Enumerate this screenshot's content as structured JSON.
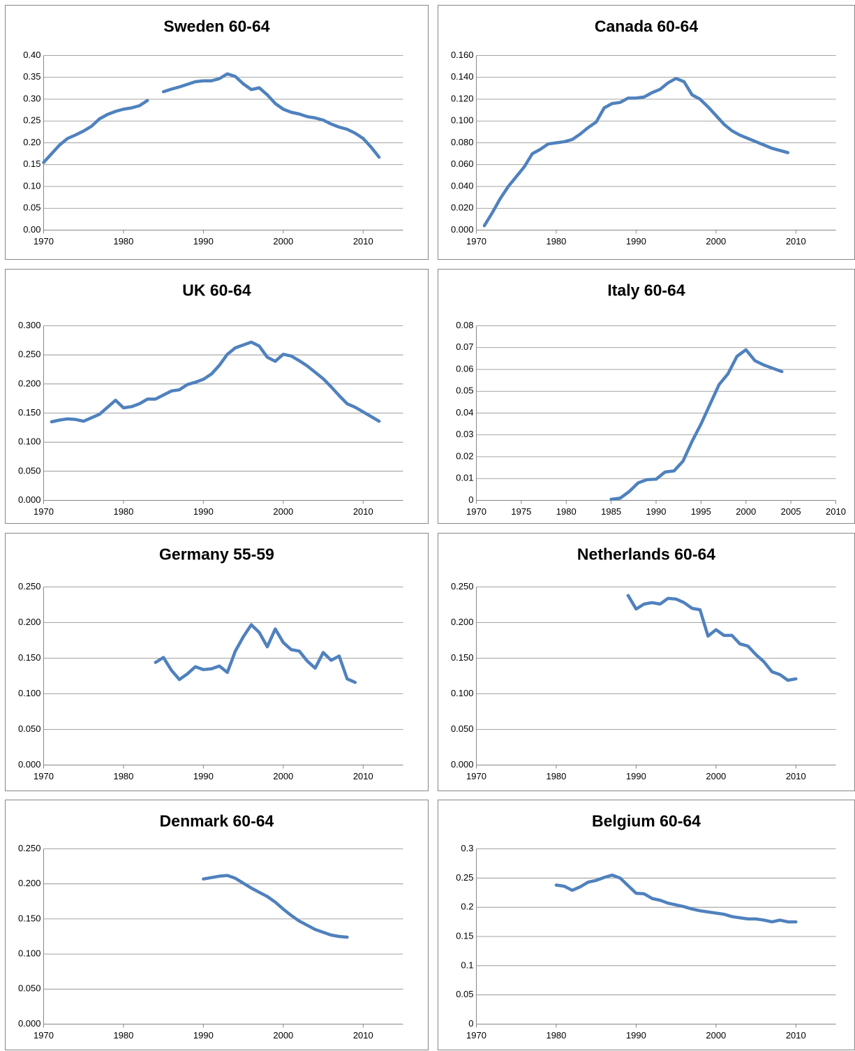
{
  "chart_data": [
    {
      "type": "line",
      "title": "Sweden 60-64",
      "color": "#4f81bd",
      "grid": true,
      "x": [
        1970,
        1971,
        1972,
        1973,
        1974,
        1975,
        1976,
        1977,
        1978,
        1979,
        1980,
        1981,
        1982,
        1983,
        1984,
        1985,
        1986,
        1987,
        1988,
        1989,
        1990,
        1991,
        1992,
        1993,
        1994,
        1995,
        1996,
        1997,
        1998,
        1999,
        2000,
        2001,
        2002,
        2003,
        2004,
        2005,
        2006,
        2007,
        2008,
        2009,
        2010,
        2011,
        2012
      ],
      "values": [
        0.155,
        0.175,
        0.195,
        0.21,
        0.218,
        0.227,
        0.238,
        0.255,
        0.265,
        0.272,
        0.277,
        0.28,
        0.285,
        0.297,
        null,
        0.317,
        0.323,
        0.328,
        0.334,
        0.34,
        0.342,
        0.342,
        0.347,
        0.358,
        0.352,
        0.335,
        0.322,
        0.326,
        0.31,
        0.29,
        0.277,
        0.27,
        0.266,
        0.26,
        0.257,
        0.252,
        0.243,
        0.236,
        0.231,
        0.222,
        0.21,
        0.19,
        0.167
      ],
      "xlim": [
        1970,
        2015
      ],
      "xticks": [
        1970,
        1980,
        1990,
        2000,
        2010
      ],
      "ylim": [
        0,
        0.4
      ],
      "yticks": [
        {
          "value": 0,
          "label": "0.00"
        },
        0.05,
        {
          "value": 0.1,
          "label": "0.10"
        },
        0.15,
        {
          "value": 0.2,
          "label": "0.20"
        },
        0.25,
        {
          "value": 0.3,
          "label": "0.30"
        },
        0.35,
        {
          "value": 0.4,
          "label": "0.40"
        }
      ]
    },
    {
      "type": "line",
      "title": "Canada 60-64",
      "color": "#4f81bd",
      "grid": true,
      "x": [
        1971,
        1972,
        1973,
        1974,
        1975,
        1976,
        1977,
        1978,
        1979,
        1980,
        1981,
        1982,
        1983,
        1984,
        1985,
        1986,
        1987,
        1988,
        1989,
        1990,
        1991,
        1992,
        1993,
        1994,
        1995,
        1996,
        1997,
        1998,
        1999,
        2000,
        2001,
        2002,
        2003,
        2004,
        2005,
        2006,
        2007,
        2008,
        2009
      ],
      "values": [
        0.004,
        0.016,
        0.029,
        0.04,
        0.049,
        0.058,
        0.07,
        0.074,
        0.079,
        0.08,
        0.081,
        0.083,
        0.088,
        0.094,
        0.099,
        0.112,
        0.116,
        0.117,
        0.121,
        0.121,
        0.122,
        0.126,
        0.129,
        0.135,
        0.139,
        0.136,
        0.124,
        0.12,
        0.113,
        0.105,
        0.097,
        0.091,
        0.087,
        0.084,
        0.081,
        0.078,
        0.075,
        0.073,
        0.071
      ],
      "xlim": [
        1970,
        2015
      ],
      "xticks": [
        1970,
        1980,
        1990,
        2000,
        2010
      ],
      "ylim": [
        0,
        0.16
      ],
      "yticks": [
        {
          "value": 0,
          "label": "0.000"
        },
        {
          "value": 0.02,
          "label": "0.020"
        },
        {
          "value": 0.04,
          "label": "0.040"
        },
        {
          "value": 0.06,
          "label": "0.060"
        },
        {
          "value": 0.08,
          "label": "0.080"
        },
        {
          "value": 0.1,
          "label": "0.100"
        },
        {
          "value": 0.12,
          "label": "0.120"
        },
        {
          "value": 0.14,
          "label": "0.140"
        },
        {
          "value": 0.16,
          "label": "0.160"
        }
      ]
    },
    {
      "type": "line",
      "title": "UK 60-64",
      "color": "#4f81bd",
      "grid": true,
      "x": [
        1971,
        1972,
        1973,
        1974,
        1975,
        1976,
        1977,
        1978,
        1979,
        1980,
        1981,
        1982,
        1983,
        1984,
        1985,
        1986,
        1987,
        1988,
        1989,
        1990,
        1991,
        1992,
        1993,
        1994,
        1995,
        1996,
        1997,
        1998,
        1999,
        2000,
        2001,
        2002,
        2003,
        2004,
        2005,
        2006,
        2007,
        2008,
        2009,
        2010,
        2011,
        2012
      ],
      "values": [
        0.135,
        0.138,
        0.14,
        0.139,
        0.136,
        0.142,
        0.148,
        0.16,
        0.172,
        0.159,
        0.161,
        0.166,
        0.174,
        0.174,
        0.181,
        0.188,
        0.19,
        0.199,
        0.203,
        0.208,
        0.217,
        0.232,
        0.251,
        0.262,
        0.267,
        0.272,
        0.265,
        0.246,
        0.239,
        0.251,
        0.248,
        0.24,
        0.231,
        0.22,
        0.209,
        0.195,
        0.18,
        0.166,
        0.16,
        0.152,
        0.144,
        0.136
      ],
      "xlim": [
        1970,
        2015
      ],
      "xticks": [
        1970,
        1980,
        1990,
        2000,
        2010
      ],
      "ylim": [
        0,
        0.3
      ],
      "yticks": [
        {
          "value": 0,
          "label": "0.000"
        },
        {
          "value": 0.05,
          "label": "0.050"
        },
        {
          "value": 0.1,
          "label": "0.100"
        },
        {
          "value": 0.15,
          "label": "0.150"
        },
        {
          "value": 0.2,
          "label": "0.200"
        },
        {
          "value": 0.25,
          "label": "0.250"
        },
        {
          "value": 0.3,
          "label": "0.300"
        }
      ]
    },
    {
      "type": "line",
      "title": "Italy 60-64",
      "color": "#4f81bd",
      "grid": true,
      "x": [
        1985,
        1986,
        1987,
        1988,
        1989,
        1990,
        1991,
        1992,
        1993,
        1994,
        1995,
        1996,
        1997,
        1998,
        1999,
        2000,
        2001,
        2002,
        2003,
        2004
      ],
      "values": [
        0.0005,
        0.001,
        0.004,
        0.008,
        0.0095,
        0.0097,
        0.013,
        0.0135,
        0.018,
        0.027,
        0.035,
        0.044,
        0.053,
        0.058,
        0.066,
        0.069,
        0.064,
        0.062,
        0.0605,
        0.059
      ],
      "xlim": [
        1970,
        2010
      ],
      "xticks": [
        1970,
        1975,
        1980,
        1985,
        1990,
        1995,
        2000,
        2005,
        2010
      ],
      "ylim": [
        0,
        0.08
      ],
      "yticks": [
        0,
        0.01,
        0.02,
        0.03,
        0.04,
        0.05,
        0.06,
        0.07,
        0.08
      ]
    },
    {
      "type": "line",
      "title": "Germany 55-59",
      "color": "#4f81bd",
      "grid": true,
      "x": [
        1984,
        1985,
        1986,
        1987,
        1988,
        1989,
        1990,
        1991,
        1992,
        1993,
        1994,
        1995,
        1996,
        1997,
        1998,
        1999,
        2000,
        2001,
        2002,
        2003,
        2004,
        2005,
        2006,
        2007,
        2008,
        2009
      ],
      "values": [
        0.144,
        0.151,
        0.133,
        0.12,
        0.128,
        0.138,
        0.134,
        0.135,
        0.139,
        0.13,
        0.16,
        0.18,
        0.197,
        0.186,
        0.166,
        0.191,
        0.172,
        0.162,
        0.16,
        0.146,
        0.136,
        0.158,
        0.147,
        0.153,
        0.121,
        0.116
      ],
      "xlim": [
        1970,
        2015
      ],
      "xticks": [
        1970,
        1980,
        1990,
        2000,
        2010
      ],
      "ylim": [
        0,
        0.25
      ],
      "yticks": [
        {
          "value": 0,
          "label": "0.000"
        },
        {
          "value": 0.05,
          "label": "0.050"
        },
        {
          "value": 0.1,
          "label": "0.100"
        },
        {
          "value": 0.15,
          "label": "0.150"
        },
        {
          "value": 0.2,
          "label": "0.200"
        },
        {
          "value": 0.25,
          "label": "0.250"
        }
      ]
    },
    {
      "type": "line",
      "title": "Netherlands 60-64",
      "color": "#4f81bd",
      "grid": true,
      "x": [
        1989,
        1990,
        1991,
        1992,
        1993,
        1994,
        1995,
        1996,
        1997,
        1998,
        1999,
        2000,
        2001,
        2002,
        2003,
        2004,
        2005,
        2006,
        2007,
        2008,
        2009,
        2010
      ],
      "values": [
        0.238,
        0.219,
        0.226,
        0.228,
        0.226,
        0.234,
        0.233,
        0.228,
        0.22,
        0.218,
        0.181,
        0.19,
        0.182,
        0.182,
        0.17,
        0.167,
        0.155,
        0.145,
        0.131,
        0.127,
        0.119,
        0.121
      ],
      "xlim": [
        1970,
        2015
      ],
      "xticks": [
        1970,
        1980,
        1990,
        2000,
        2010
      ],
      "ylim": [
        0,
        0.25
      ],
      "yticks": [
        {
          "value": 0,
          "label": "0.000"
        },
        {
          "value": 0.05,
          "label": "0.050"
        },
        {
          "value": 0.1,
          "label": "0.100"
        },
        {
          "value": 0.15,
          "label": "0.150"
        },
        {
          "value": 0.2,
          "label": "0.200"
        },
        {
          "value": 0.25,
          "label": "0.250"
        }
      ]
    },
    {
      "type": "line",
      "title": "Denmark 60-64",
      "color": "#4f81bd",
      "grid": true,
      "x": [
        1990,
        1991,
        1992,
        1993,
        1994,
        1995,
        1996,
        1997,
        1998,
        1999,
        2000,
        2001,
        2002,
        2003,
        2004,
        2005,
        2006,
        2007,
        2008
      ],
      "values": [
        0.207,
        0.209,
        0.211,
        0.212,
        0.208,
        0.201,
        0.194,
        0.188,
        0.182,
        0.174,
        0.164,
        0.155,
        0.147,
        0.141,
        0.135,
        0.131,
        0.127,
        0.125,
        0.124
      ],
      "xlim": [
        1970,
        2015
      ],
      "xticks": [
        1970,
        1980,
        1990,
        2000,
        2010
      ],
      "ylim": [
        0,
        0.25
      ],
      "yticks": [
        {
          "value": 0,
          "label": "0.000"
        },
        {
          "value": 0.05,
          "label": "0.050"
        },
        {
          "value": 0.1,
          "label": "0.100"
        },
        {
          "value": 0.15,
          "label": "0.150"
        },
        {
          "value": 0.2,
          "label": "0.200"
        },
        {
          "value": 0.25,
          "label": "0.250"
        }
      ]
    },
    {
      "type": "line",
      "title": "Belgium 60-64",
      "color": "#4f81bd",
      "grid": true,
      "x": [
        1980,
        1981,
        1982,
        1983,
        1984,
        1985,
        1986,
        1987,
        1988,
        1989,
        1990,
        1991,
        1992,
        1993,
        1994,
        1995,
        1996,
        1997,
        1998,
        1999,
        2000,
        2001,
        2002,
        2003,
        2004,
        2005,
        2006,
        2007,
        2008,
        2009,
        2010
      ],
      "values": [
        0.238,
        0.236,
        0.229,
        0.235,
        0.243,
        0.246,
        0.251,
        0.255,
        0.25,
        0.237,
        0.224,
        0.223,
        0.215,
        0.212,
        0.207,
        0.204,
        0.201,
        0.197,
        0.194,
        0.192,
        0.19,
        0.188,
        0.184,
        0.182,
        0.18,
        0.18,
        0.178,
        0.175,
        0.178,
        0.175,
        0.175
      ],
      "xlim": [
        1970,
        2015
      ],
      "xticks": [
        1970,
        1980,
        1990,
        2000,
        2010
      ],
      "ylim": [
        0,
        0.3
      ],
      "yticks": [
        0,
        0.05,
        0.1,
        0.15,
        0.2,
        0.25,
        0.3
      ]
    }
  ]
}
